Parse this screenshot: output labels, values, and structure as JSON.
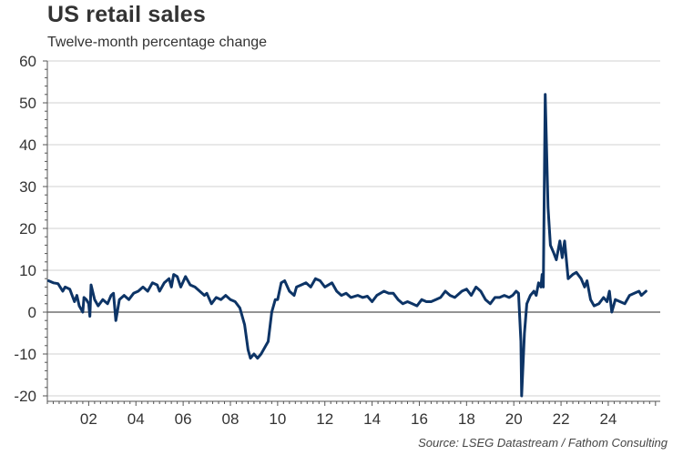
{
  "chart_data": {
    "type": "line",
    "title": "US retail sales",
    "subtitle": "Twelve-month percentage change",
    "source": "Source: LSEG Datastream / Fathom Consulting",
    "xlabel": "",
    "ylabel": "",
    "ylim": [
      -20,
      60
    ],
    "xlim": [
      2000.25,
      2026.2
    ],
    "yticks": [
      60,
      50,
      40,
      30,
      20,
      10,
      0,
      -10,
      -20
    ],
    "xticks": [
      {
        "year": 2002,
        "label": "02"
      },
      {
        "year": 2004,
        "label": "04"
      },
      {
        "year": 2006,
        "label": "06"
      },
      {
        "year": 2008,
        "label": "08"
      },
      {
        "year": 2010,
        "label": "10"
      },
      {
        "year": 2012,
        "label": "12"
      },
      {
        "year": 2014,
        "label": "14"
      },
      {
        "year": 2016,
        "label": "16"
      },
      {
        "year": 2018,
        "label": "18"
      },
      {
        "year": 2020,
        "label": "20"
      },
      {
        "year": 2022,
        "label": "22"
      },
      {
        "year": 2024,
        "label": "24"
      }
    ],
    "grid": true,
    "line_color": "#0d3466",
    "series": [
      {
        "name": "US retail sales, 12-month % change",
        "x": [
          2000.3,
          2000.5,
          2000.7,
          2000.9,
          2001.0,
          2001.2,
          2001.4,
          2001.5,
          2001.6,
          2001.75,
          2001.8,
          2001.9,
          2002.0,
          2002.05,
          2002.1,
          2002.25,
          2002.4,
          2002.6,
          2002.8,
          2002.95,
          2003.05,
          2003.15,
          2003.3,
          2003.5,
          2003.7,
          2003.9,
          2004.1,
          2004.3,
          2004.5,
          2004.7,
          2004.9,
          2005.0,
          2005.2,
          2005.4,
          2005.5,
          2005.6,
          2005.75,
          2005.9,
          2006.1,
          2006.3,
          2006.5,
          2006.7,
          2006.9,
          2007.0,
          2007.2,
          2007.4,
          2007.6,
          2007.8,
          2008.0,
          2008.2,
          2008.4,
          2008.6,
          2008.75,
          2008.85,
          2009.0,
          2009.15,
          2009.3,
          2009.5,
          2009.6,
          2009.75,
          2009.9,
          2010.0,
          2010.15,
          2010.3,
          2010.5,
          2010.7,
          2010.8,
          2011.0,
          2011.2,
          2011.4,
          2011.6,
          2011.8,
          2012.0,
          2012.3,
          2012.5,
          2012.7,
          2012.9,
          2013.1,
          2013.4,
          2013.6,
          2013.8,
          2014.0,
          2014.2,
          2014.5,
          2014.7,
          2014.9,
          2015.1,
          2015.3,
          2015.5,
          2015.7,
          2015.9,
          2016.1,
          2016.3,
          2016.5,
          2016.7,
          2016.9,
          2017.1,
          2017.3,
          2017.5,
          2017.8,
          2018.0,
          2018.2,
          2018.4,
          2018.6,
          2018.8,
          2019.0,
          2019.2,
          2019.4,
          2019.6,
          2019.8,
          2019.95,
          2020.1,
          2020.2,
          2020.3,
          2020.33,
          2020.45,
          2020.55,
          2020.7,
          2020.85,
          2020.95,
          2021.05,
          2021.15,
          2021.2,
          2021.25,
          2021.33,
          2021.45,
          2021.55,
          2021.7,
          2021.8,
          2021.95,
          2022.05,
          2022.15,
          2022.3,
          2022.5,
          2022.65,
          2022.85,
          2023.0,
          2023.1,
          2023.25,
          2023.4,
          2023.6,
          2023.8,
          2023.95,
          2024.05,
          2024.15,
          2024.3,
          2024.5,
          2024.7,
          2024.9,
          2025.1,
          2025.3,
          2025.4,
          2025.5,
          2025.6
        ],
        "values": [
          7.5,
          7,
          6.8,
          5,
          6,
          5.5,
          2.5,
          4,
          1.5,
          0,
          3.5,
          3,
          2,
          -1,
          6.5,
          3,
          1.5,
          3,
          2,
          4,
          4.5,
          -2,
          3,
          4,
          3,
          4.5,
          5,
          6,
          5,
          7,
          6.5,
          5,
          7,
          8,
          6,
          9,
          8.5,
          6,
          8.5,
          6.5,
          6,
          5,
          4,
          4.5,
          2,
          3.5,
          3,
          4,
          3,
          2.5,
          1,
          -3,
          -9,
          -11,
          -10,
          -11,
          -10,
          -8,
          -7,
          0,
          3,
          3,
          7,
          7.5,
          5,
          4,
          6,
          6.5,
          7,
          6,
          8,
          7.5,
          6,
          7,
          5,
          4,
          4.5,
          3.5,
          4,
          3.5,
          3.8,
          2.5,
          4,
          5,
          4.5,
          4.5,
          3,
          2,
          2.5,
          2,
          1.5,
          3,
          2.5,
          2.5,
          3,
          3.5,
          5,
          4,
          3.5,
          5,
          5.5,
          4,
          6,
          5,
          3,
          2,
          3.5,
          3.5,
          4,
          3.5,
          4,
          5,
          4.5,
          -7,
          -20,
          -5,
          2,
          4,
          5,
          4,
          7,
          6,
          9,
          6,
          52,
          25,
          16,
          14,
          12.5,
          17,
          13,
          17,
          8,
          9,
          9.5,
          8,
          6,
          7.5,
          3,
          1.5,
          2,
          3.5,
          2.5,
          5,
          0,
          3,
          2.5,
          2,
          4,
          4.5,
          5,
          4,
          4.5,
          5
        ]
      }
    ]
  }
}
